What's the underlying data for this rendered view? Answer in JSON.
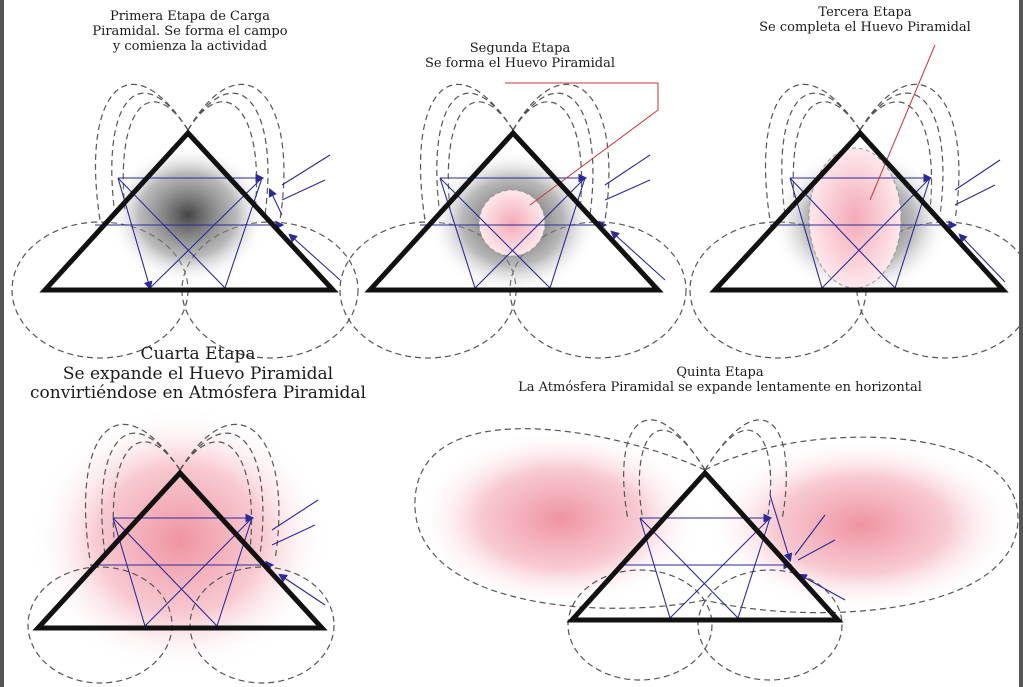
{
  "stages": [
    {
      "lines": [
        "Primera Etapa de Carga",
        "Piramidal. Se forma el campo",
        "y comienza la actividad"
      ]
    },
    {
      "lines": [
        "Segunda Etapa",
        "Se forma el Huevo Piramidal"
      ]
    },
    {
      "lines": [
        "Tercera Etapa",
        "Se completa el Huevo Piramidal"
      ]
    },
    {
      "lines": [
        "Cuarta Etapa",
        "Se expande el Huevo Piramidal",
        "convirtiéndose en Atmósfera Piramidal"
      ]
    },
    {
      "lines": [
        "Quinta Etapa",
        "La Atmósfera Piramidal se expande lentamente en horizontal"
      ]
    }
  ],
  "colors": {
    "triangle": "#111111",
    "arrows": "#2a2a9a",
    "field_lines": "#555555",
    "egg": "#f4b6c0",
    "shadow": "#7a7a7a",
    "pointer": "#cc3333"
  }
}
